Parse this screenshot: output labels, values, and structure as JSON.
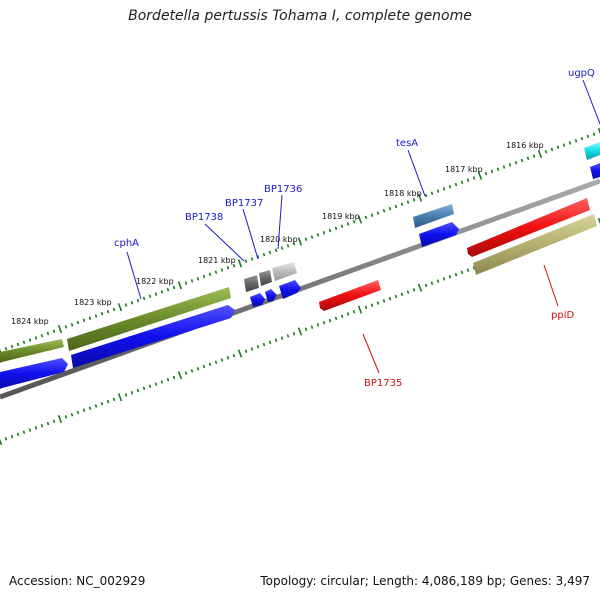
{
  "title": "Bordetella pertussis Tohama I, complete genome",
  "footer": {
    "accession": "Accession: NC_002929",
    "summary": "Topology: circular; Length: 4,086,189 bp; Genes: 3,497"
  },
  "colors": {
    "backbone": "#777777",
    "ticks": "#1a7a1a",
    "forward_label": "#1a1acc",
    "reverse_label": "#cc1010",
    "cds_blue": "#1010ee",
    "gene_olive": "#6b8c2a",
    "gene_red": "#ee1010",
    "gene_khaki": "#b5b070",
    "gene_steel": "#4a7fb0",
    "gene_cyan": "#10dde8",
    "gene_gray_dark": "#666666",
    "gene_gray_light": "#bbbbbb"
  },
  "scale_labels": [
    "1824 kbp",
    "1823 kbp",
    "1822 kbp",
    "1821 kbp",
    "1820 kbp",
    "1819 kbp",
    "1818 kbp",
    "1817 kbp",
    "1816 kbp"
  ],
  "gene_labels": {
    "cphA": "cphA",
    "BP1738": "BP1738",
    "BP1737": "BP1737",
    "BP1736": "BP1736",
    "tesA": "tesA",
    "ugpQ": "ugpQ",
    "BP1735": "BP1735",
    "ppiD": "ppiD"
  }
}
